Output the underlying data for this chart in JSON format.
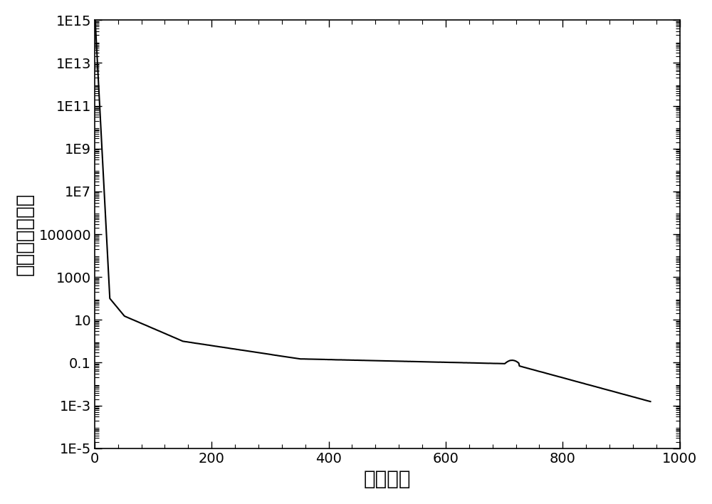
{
  "title": "",
  "xlabel": "进化代数",
  "ylabel": "平均最优函数值",
  "xlim": [
    0,
    1000
  ],
  "ylim_log": [
    1e-05,
    1000000000000000.0
  ],
  "x_ticks": [
    0,
    200,
    400,
    600,
    800,
    1000
  ],
  "y_ticks": [
    1e-05,
    0.001,
    0.1,
    10,
    1000,
    100000,
    10000000.0,
    1000000000.0,
    100000000000.0,
    10000000000000.0,
    1000000000000000.0
  ],
  "y_tick_labels": [
    "1E-5",
    "1E-3",
    "0.1",
    "10",
    "1000",
    "100000",
    "1E7",
    "1E9",
    "1E11",
    "1E13",
    "1E15"
  ],
  "line_color": "#000000",
  "line_width": 1.5,
  "background_color": "#ffffff",
  "xlabel_fontsize": 20,
  "ylabel_fontsize": 20,
  "tick_fontsize": 14
}
